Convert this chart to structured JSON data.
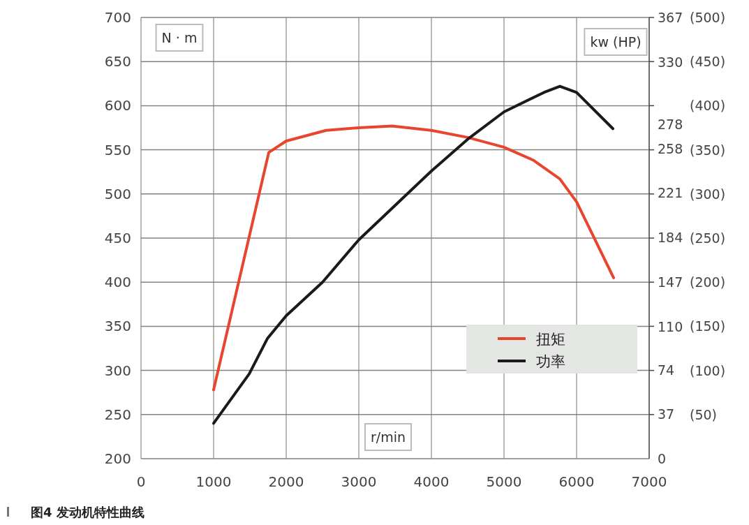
{
  "chart_data": {
    "type": "line",
    "title": "图4 发动机特性曲线",
    "xlabel": "r/min",
    "ylabel": "N · m",
    "y2label": "kw (HP)",
    "xlim": [
      0,
      7000
    ],
    "xticks": [
      0,
      1000,
      2000,
      3000,
      4000,
      5000,
      6000,
      7000
    ],
    "ylim": [
      200,
      700
    ],
    "yticks": [
      200,
      250,
      300,
      350,
      400,
      450,
      500,
      550,
      600,
      650,
      700
    ],
    "y2lim": [
      0,
      500
    ],
    "y2ticks": [
      {
        "value": 50,
        "label": "(50)"
      },
      {
        "value": 100,
        "label": "(100)"
      },
      {
        "value": 150,
        "label": "(150)"
      },
      {
        "value": 200,
        "label": "(200)"
      },
      {
        "value": 250,
        "label": "(250)"
      },
      {
        "value": 300,
        "label": "(300)"
      },
      {
        "value": 350,
        "label": "(350)"
      },
      {
        "value": 400,
        "label": "(400)"
      },
      {
        "value": 450,
        "label": "(450)"
      },
      {
        "value": 500,
        "label": "(500)"
      }
    ],
    "y3lim": [
      0,
      367
    ],
    "y3ticks": [
      0,
      37,
      74,
      110,
      147,
      184,
      221,
      258,
      278,
      330,
      367
    ],
    "grid": true,
    "legend": "bottom right",
    "line_style": "solid",
    "marker": "none",
    "series": [
      {
        "name": "扭矩",
        "color": "#e8452e",
        "x": [
          1000,
          1760,
          2000,
          2550,
          3000,
          3460,
          4000,
          4500,
          5000,
          5410,
          5770,
          6000,
          6510
        ],
        "values": [
          278,
          547,
          560,
          572,
          575,
          577,
          572,
          564,
          553,
          538,
          517,
          491,
          405
        ]
      },
      {
        "name": "功率",
        "color": "#1a1a1a",
        "axis": "y2",
        "x": [
          1000,
          1490,
          1740,
          2000,
          2500,
          3000,
          3500,
          4000,
          4500,
          5000,
          5550,
          5770,
          6000,
          6500
        ],
        "values": [
          40,
          96,
          136,
          162,
          200,
          248,
          287,
          326,
          362,
          393,
          415,
          422,
          415,
          374
        ]
      }
    ]
  }
}
